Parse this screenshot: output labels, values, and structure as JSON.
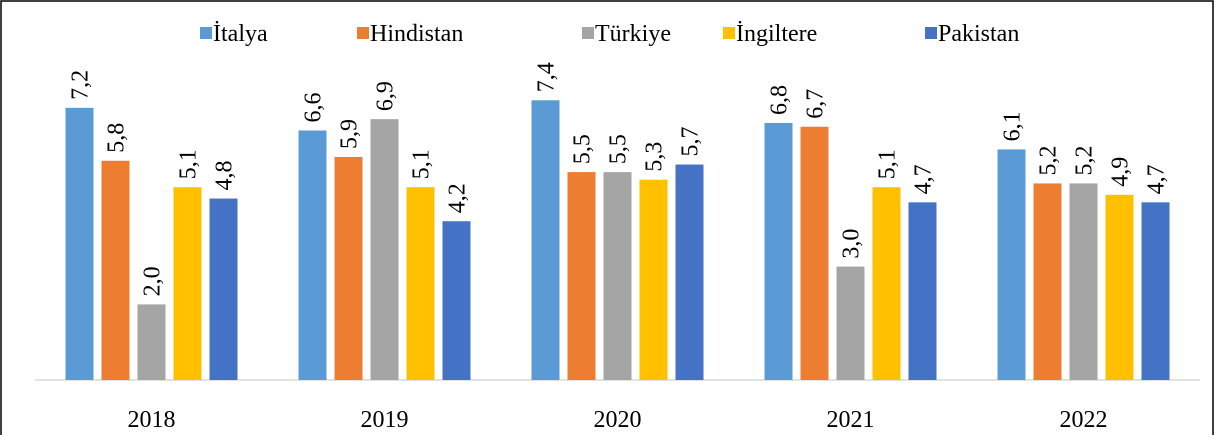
{
  "chart_data": {
    "type": "bar",
    "categories": [
      "2018",
      "2019",
      "2020",
      "2021",
      "2022"
    ],
    "series": [
      {
        "name": "İtalya",
        "color": "#5b9bd5",
        "values": [
          7.2,
          6.6,
          7.4,
          6.8,
          6.1
        ],
        "value_labels": [
          "7,2",
          "6,6",
          "7,4",
          "6,8",
          "6,1"
        ]
      },
      {
        "name": "Hindistan",
        "color": "#ed7d31",
        "values": [
          5.8,
          5.9,
          5.5,
          6.7,
          5.2
        ],
        "value_labels": [
          "5,8",
          "5,9",
          "5,5",
          "6,7",
          "5,2"
        ]
      },
      {
        "name": "Türkiye",
        "color": "#a5a5a5",
        "values": [
          2.0,
          6.9,
          5.5,
          3.0,
          5.2
        ],
        "value_labels": [
          "2,0",
          "6,9",
          "5,5",
          "3,0",
          "5,2"
        ]
      },
      {
        "name": "İngiltere",
        "color": "#ffc000",
        "values": [
          5.1,
          5.1,
          5.3,
          5.1,
          4.9
        ],
        "value_labels": [
          "5,1",
          "5,1",
          "5,3",
          "5,1",
          "4,9"
        ]
      },
      {
        "name": "Pakistan",
        "color": "#4472c4",
        "values": [
          4.8,
          4.2,
          5.7,
          4.7,
          4.7
        ],
        "value_labels": [
          "4,8",
          "4,2",
          "5,7",
          "4,7",
          "4,7"
        ]
      }
    ],
    "ylim": [
      0,
      10
    ],
    "legend": "top"
  }
}
